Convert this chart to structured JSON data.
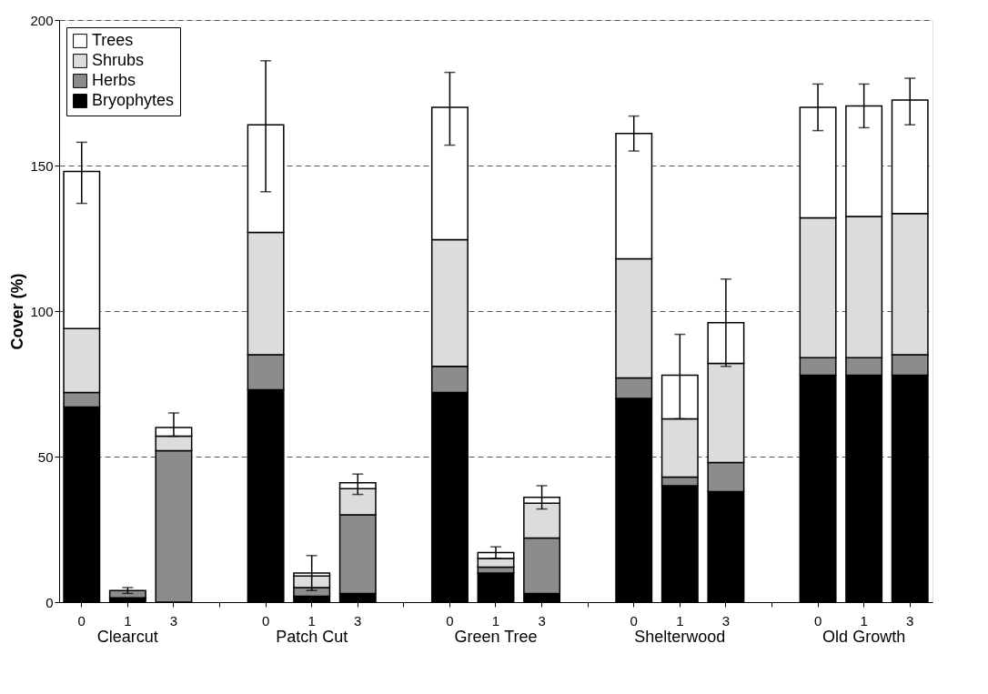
{
  "chart_data": {
    "type": "bar",
    "stacked": true,
    "ylabel": "Cover (%)",
    "categories": [
      "0",
      "1",
      "3",
      null,
      "0",
      "1",
      "3",
      null,
      "0",
      "1",
      "3",
      null,
      "0",
      "1",
      "3",
      null,
      "0",
      "1",
      "3"
    ],
    "annotations": [
      "Clearcut",
      "Patch Cut",
      "Green Tree",
      "Shelterwood",
      "Old Growth"
    ],
    "series": [
      {
        "name": "Bryophytes",
        "color": "#000000",
        "values": [
          67,
          1.5,
          null,
          null,
          73,
          2,
          3,
          null,
          72,
          10,
          3,
          null,
          70,
          40,
          38,
          null,
          78,
          78,
          78
        ]
      },
      {
        "name": "Herbs",
        "color": "#8c8c8c",
        "values": [
          5,
          2.5,
          52,
          null,
          12,
          3,
          27,
          null,
          9,
          2,
          19,
          null,
          7,
          3,
          10,
          null,
          6,
          6,
          7
        ],
        "errors": [
          null,
          [
            3,
            5
          ],
          null,
          null,
          null,
          null,
          null,
          null,
          null,
          null,
          null,
          null,
          null,
          null,
          null,
          null,
          null,
          null,
          null
        ]
      },
      {
        "name": "Shrubs",
        "color": "#dcdcdc",
        "values": [
          22,
          null,
          5,
          null,
          42,
          4,
          9,
          null,
          43.5,
          3,
          12,
          null,
          41,
          20,
          34,
          null,
          48,
          48.5,
          48.5
        ]
      },
      {
        "name": "Trees",
        "color": "#ffffff",
        "values": [
          54,
          null,
          3,
          null,
          37,
          1,
          2,
          null,
          45.5,
          2,
          2,
          null,
          43,
          15,
          14,
          null,
          38,
          38,
          39
        ],
        "errors": [
          [
            137,
            158
          ],
          null,
          [
            57,
            65
          ],
          null,
          [
            141,
            186
          ],
          [
            4,
            16
          ],
          [
            37,
            44
          ],
          null,
          [
            157,
            182
          ],
          [
            15,
            19
          ],
          [
            32,
            40
          ],
          null,
          [
            155,
            167
          ],
          [
            63,
            92
          ],
          [
            81,
            111
          ],
          null,
          [
            162,
            178
          ],
          [
            163,
            178
          ],
          [
            164,
            180
          ]
        ]
      }
    ],
    "ylim": [
      0,
      200
    ],
    "yticks": [
      0,
      50,
      100,
      150,
      200
    ],
    "grid": "y",
    "legend": "top left"
  }
}
